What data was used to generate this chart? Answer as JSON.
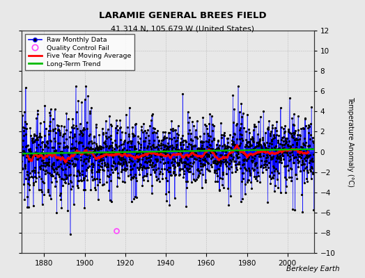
{
  "title": "LARAMIE GENERAL BREES FIELD",
  "subtitle": "41.314 N, 105.679 W (United States)",
  "ylabel": "Temperature Anomaly (°C)",
  "credit": "Berkeley Earth",
  "xlim": [
    1869,
    2013
  ],
  "ylim": [
    -10,
    12
  ],
  "yticks": [
    -10,
    -8,
    -6,
    -4,
    -2,
    0,
    2,
    4,
    6,
    8,
    10,
    12
  ],
  "xticks": [
    1880,
    1900,
    1920,
    1940,
    1960,
    1980,
    2000
  ],
  "start_year": 1869,
  "end_year": 2012,
  "seed": 12345,
  "bg_color": "#e8e8e8",
  "line_color": "#0000ff",
  "dot_color": "#000000",
  "ma_color": "#ff0000",
  "trend_color": "#00bb00",
  "qc_color": "#ff44ff",
  "qc_year": 1915,
  "qc_month": 5,
  "qc_value": -7.8
}
